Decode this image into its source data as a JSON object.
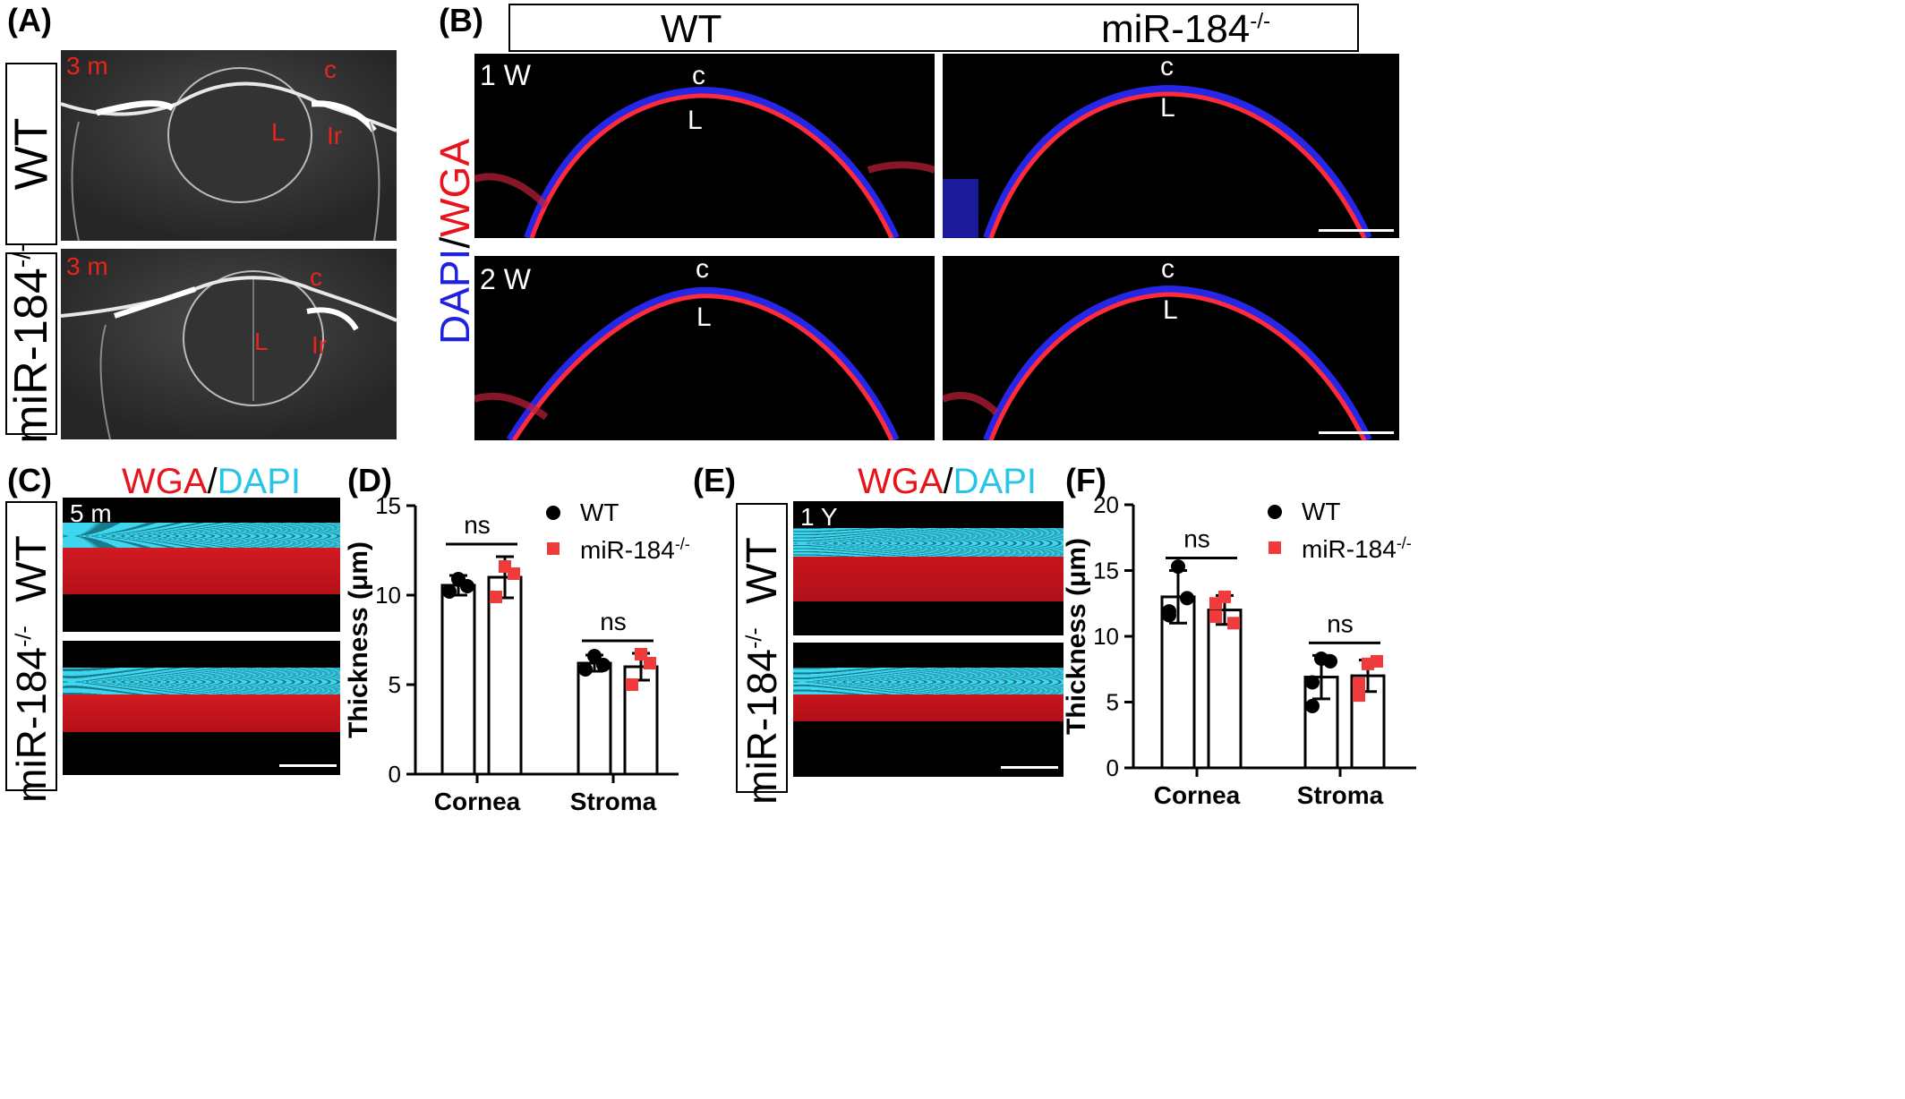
{
  "panels": {
    "A": {
      "letter": "(A)",
      "rows": [
        {
          "genotype_base": "WT",
          "genotype_sup": "",
          "age": "3 m",
          "labels": {
            "c": "c",
            "L": "L",
            "Ir": "Ir"
          }
        },
        {
          "genotype_base": "miR-184",
          "genotype_sup": "-/-",
          "age": "3 m",
          "labels": {
            "c": "c",
            "L": "L",
            "Ir": "Ir"
          }
        }
      ]
    },
    "B": {
      "letter": "(B)",
      "header": {
        "left": "WT",
        "right_base": "miR-184",
        "right_sup": "-/-"
      },
      "stain_label": {
        "dapi": "DAPI",
        "slash": "/",
        "wga": "WGA"
      },
      "rows": [
        {
          "age": "1 W",
          "c": "c",
          "L": "L"
        },
        {
          "age": "2 W",
          "c": "c",
          "L": "L"
        }
      ]
    },
    "C": {
      "letter": "(C)",
      "stain": {
        "wga": "WGA",
        "slash": "/",
        "dapi": "DAPI"
      },
      "age": "5 m",
      "rows": [
        {
          "genotype_base": "WT",
          "genotype_sup": ""
        },
        {
          "genotype_base": "miR-184",
          "genotype_sup": "-/-"
        }
      ]
    },
    "D": {
      "letter": "(D)"
    },
    "E": {
      "letter": "(E)",
      "stain": {
        "wga": "WGA",
        "slash": "/",
        "dapi": "DAPI"
      },
      "age": "1 Y",
      "rows": [
        {
          "genotype_base": "WT",
          "genotype_sup": ""
        },
        {
          "genotype_base": "miR-184",
          "genotype_sup": "-/-"
        }
      ]
    },
    "F": {
      "letter": "(F)"
    }
  },
  "colors": {
    "wt": "#000000",
    "ko": "#ef3b3b",
    "wga_red": "#e8141c",
    "dapi_cyan": "#29c5e6",
    "dapi_blue": "#2020e0",
    "oct_label": "#e8251c"
  },
  "chart_data": [
    {
      "type": "bar",
      "panel": "D",
      "categories": [
        "Cornea",
        "Stroma"
      ],
      "ylabel": "Thickness (μm)",
      "ylim": [
        0,
        15
      ],
      "yticks": [
        "0",
        "5",
        "10",
        "15"
      ],
      "series": [
        {
          "name": "WT",
          "values": [
            10.55,
            6.2
          ],
          "sd": [
            0.55,
            0.45
          ],
          "points": [
            [
              10.2,
              10.9,
              10.5
            ],
            [
              5.85,
              6.6,
              6.1
            ]
          ]
        },
        {
          "name": "miR-184",
          "name_sup": "-/-",
          "values": [
            11.0,
            6.0
          ],
          "sd": [
            1.15,
            0.75
          ],
          "points": [
            [
              9.9,
              11.6,
              11.2
            ],
            [
              5.0,
              6.7,
              6.2
            ]
          ]
        }
      ],
      "annotations": [
        "ns",
        "ns"
      ],
      "legend": "top-right"
    },
    {
      "type": "bar",
      "panel": "F",
      "categories": [
        "Cornea",
        "Stroma"
      ],
      "ylabel": "Thickness (μm)",
      "ylim": [
        0,
        20
      ],
      "yticks": [
        "0",
        "5",
        "10",
        "15",
        "20"
      ],
      "series": [
        {
          "name": "WT",
          "values": [
            13.0,
            6.9
          ],
          "sd": [
            2.0,
            1.65
          ],
          "points": [
            [
              11.6,
              15.3,
              12.9,
              11.9
            ],
            [
              4.7,
              8.3,
              8.1,
              6.5
            ]
          ]
        },
        {
          "name": "miR-184",
          "name_sup": "-/-",
          "values": [
            12.0,
            7.0
          ],
          "sd": [
            1.1,
            1.2
          ],
          "points": [
            [
              11.5,
              13.0,
              11.0,
              12.5
            ],
            [
              5.5,
              7.9,
              8.1,
              6.4
            ]
          ]
        }
      ],
      "annotations": [
        "ns",
        "ns"
      ],
      "legend": "top-right"
    }
  ]
}
